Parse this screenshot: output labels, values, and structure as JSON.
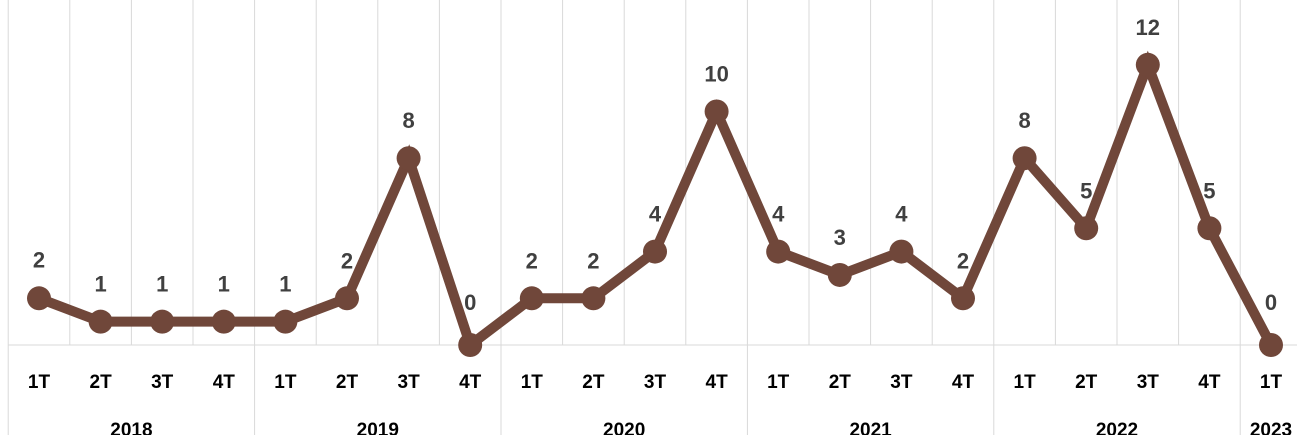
{
  "chart_data": {
    "type": "line",
    "title": "",
    "xlabel": "",
    "ylabel": "",
    "ylim": [
      0,
      12.5
    ],
    "grid": "vertical",
    "legend": "none",
    "color": "#70473a",
    "groups": [
      {
        "label": "2018",
        "categories": [
          "1T",
          "2T",
          "3T",
          "4T"
        ]
      },
      {
        "label": "2019",
        "categories": [
          "1T",
          "2T",
          "3T",
          "4T"
        ]
      },
      {
        "label": "2020",
        "categories": [
          "1T",
          "2T",
          "3T",
          "4T"
        ]
      },
      {
        "label": "2021",
        "categories": [
          "1T",
          "2T",
          "3T",
          "4T"
        ]
      },
      {
        "label": "2022",
        "categories": [
          "1T",
          "2T",
          "3T",
          "4T"
        ]
      },
      {
        "label": "2023",
        "categories": [
          "1T"
        ]
      }
    ],
    "series": [
      {
        "values": [
          2,
          1,
          1,
          1,
          1,
          2,
          8,
          0,
          2,
          2,
          4,
          10,
          4,
          3,
          4,
          2,
          8,
          5,
          12,
          5,
          0
        ],
        "labels": [
          "2",
          "1",
          "1",
          "1",
          "1",
          "2",
          "8",
          "0",
          "2",
          "2",
          "4",
          "10",
          "4",
          "3",
          "4",
          "2",
          "8",
          "5",
          "12",
          "5",
          "0"
        ]
      }
    ]
  }
}
